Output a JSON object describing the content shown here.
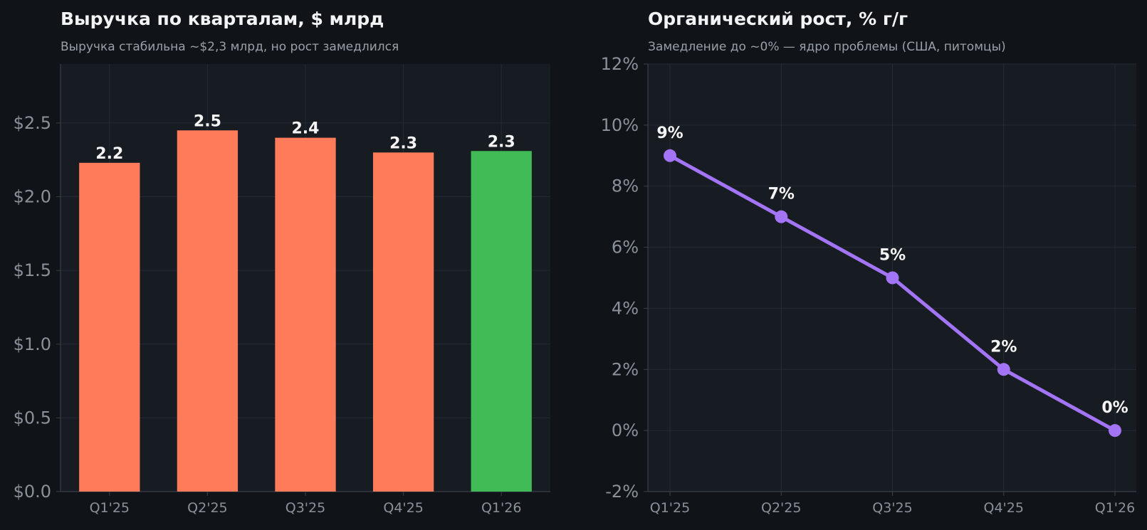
{
  "colors": {
    "page_bg": "#101418",
    "plot_bg": "#171b22",
    "grid": "#262b33",
    "axis": "#3a3f47",
    "tick_text": "#8b919b",
    "title_text": "#f2f3f5",
    "subtitle_text": "#9aa0a8",
    "bar_default": "#ff7b5a",
    "bar_highlight": "#40bb55",
    "line": "#a374f5",
    "label_text": "#f5f5f5"
  },
  "chart_data": [
    {
      "type": "bar",
      "title": "Выручка по кварталам, $ млрд",
      "subtitle": "Выручка стабильна ~$2,3 млрд, но рост замедлился",
      "categories": [
        "Q1'25",
        "Q2'25",
        "Q3'25",
        "Q4'25",
        "Q1'26"
      ],
      "values": [
        2.23,
        2.45,
        2.4,
        2.3,
        2.31
      ],
      "data_labels": [
        "2.2",
        "2.5",
        "2.4",
        "2.3",
        "2.3"
      ],
      "highlight_index": 4,
      "ylim": [
        0,
        2.9
      ],
      "yticks": [
        0,
        0.5,
        1.0,
        1.5,
        2.0,
        2.5
      ],
      "ytick_labels": [
        "$0.0",
        "$0.5",
        "$1.0",
        "$1.5",
        "$2.0",
        "$2.5"
      ],
      "grid": true,
      "xlabel": "",
      "ylabel": ""
    },
    {
      "type": "line",
      "title": "Органический рост, % г/г",
      "subtitle": "Замедление до ~0% — ядро проблемы (США, питомцы)",
      "categories": [
        "Q1'25",
        "Q2'25",
        "Q3'25",
        "Q4'25",
        "Q1'26"
      ],
      "values": [
        9,
        7,
        5,
        2,
        0
      ],
      "data_labels": [
        "9%",
        "7%",
        "5%",
        "2%",
        "0%"
      ],
      "ylim": [
        -2,
        12
      ],
      "yticks": [
        -2,
        0,
        2,
        4,
        6,
        8,
        10,
        12
      ],
      "ytick_labels": [
        "-2%",
        "0%",
        "2%",
        "4%",
        "6%",
        "8%",
        "10%",
        "12%"
      ],
      "grid": true,
      "xlabel": "",
      "ylabel": ""
    }
  ]
}
